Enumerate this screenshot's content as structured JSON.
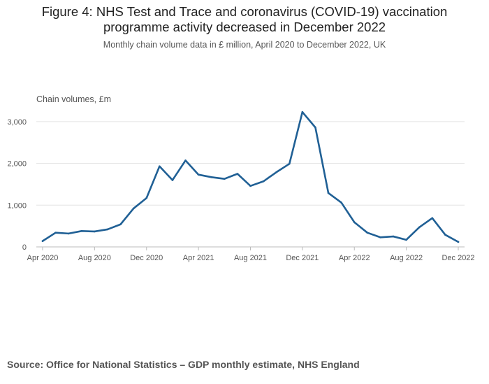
{
  "title_line1": "Figure 4: NHS Test and Trace and coronavirus (COVID-19) vaccination",
  "title_line2": "programme activity decreased in December 2022",
  "subtitle": "Monthly chain volume data in £ million, April 2020 to December 2022, UK",
  "source": "Source: Office for National Statistics – GDP monthly estimate, NHS England",
  "colors": {
    "line": "#206095",
    "grid": "#e3e3e3",
    "axis": "#bbbbbb"
  },
  "chart_data": {
    "type": "line",
    "title": "Figure 4: NHS Test and Trace and coronavirus (COVID-19) vaccination programme activity decreased in December 2022",
    "ylabel": "Chain volumes, £m",
    "xlabel": "",
    "ylim": [
      0,
      3400
    ],
    "x": [
      "Apr 2020",
      "May 2020",
      "Jun 2020",
      "Jul 2020",
      "Aug 2020",
      "Sep 2020",
      "Oct 2020",
      "Nov 2020",
      "Dec 2020",
      "Jan 2021",
      "Feb 2021",
      "Mar 2021",
      "Apr 2021",
      "May 2021",
      "Jun 2021",
      "Jul 2021",
      "Aug 2021",
      "Sep 2021",
      "Oct 2021",
      "Nov 2021",
      "Dec 2021",
      "Jan 2022",
      "Feb 2022",
      "Mar 2022",
      "Apr 2022",
      "May 2022",
      "Jun 2022",
      "Jul 2022",
      "Aug 2022",
      "Sep 2022",
      "Oct 2022",
      "Nov 2022",
      "Dec 2022"
    ],
    "series": [
      {
        "name": "Chain volumes",
        "values": [
          140,
          340,
          320,
          380,
          370,
          420,
          540,
          920,
          1170,
          1930,
          1600,
          2070,
          1730,
          1670,
          1630,
          1750,
          1460,
          1570,
          1790,
          1990,
          3230,
          2860,
          1290,
          1060,
          590,
          340,
          230,
          250,
          170,
          470,
          690,
          290,
          120
        ]
      }
    ],
    "y_ticks": [
      {
        "value": 0,
        "label": "0"
      },
      {
        "value": 1000,
        "label": "1,000"
      },
      {
        "value": 2000,
        "label": "2,000"
      },
      {
        "value": 3000,
        "label": "3,000"
      }
    ],
    "x_ticks": [
      {
        "index": 0,
        "label": "Apr 2020"
      },
      {
        "index": 4,
        "label": "Aug 2020"
      },
      {
        "index": 8,
        "label": "Dec 2020"
      },
      {
        "index": 12,
        "label": "Apr 2021"
      },
      {
        "index": 16,
        "label": "Aug 2021"
      },
      {
        "index": 20,
        "label": "Dec 2021"
      },
      {
        "index": 24,
        "label": "Apr 2022"
      },
      {
        "index": 28,
        "label": "Aug 2022"
      },
      {
        "index": 32,
        "label": "Dec 2022"
      }
    ]
  }
}
